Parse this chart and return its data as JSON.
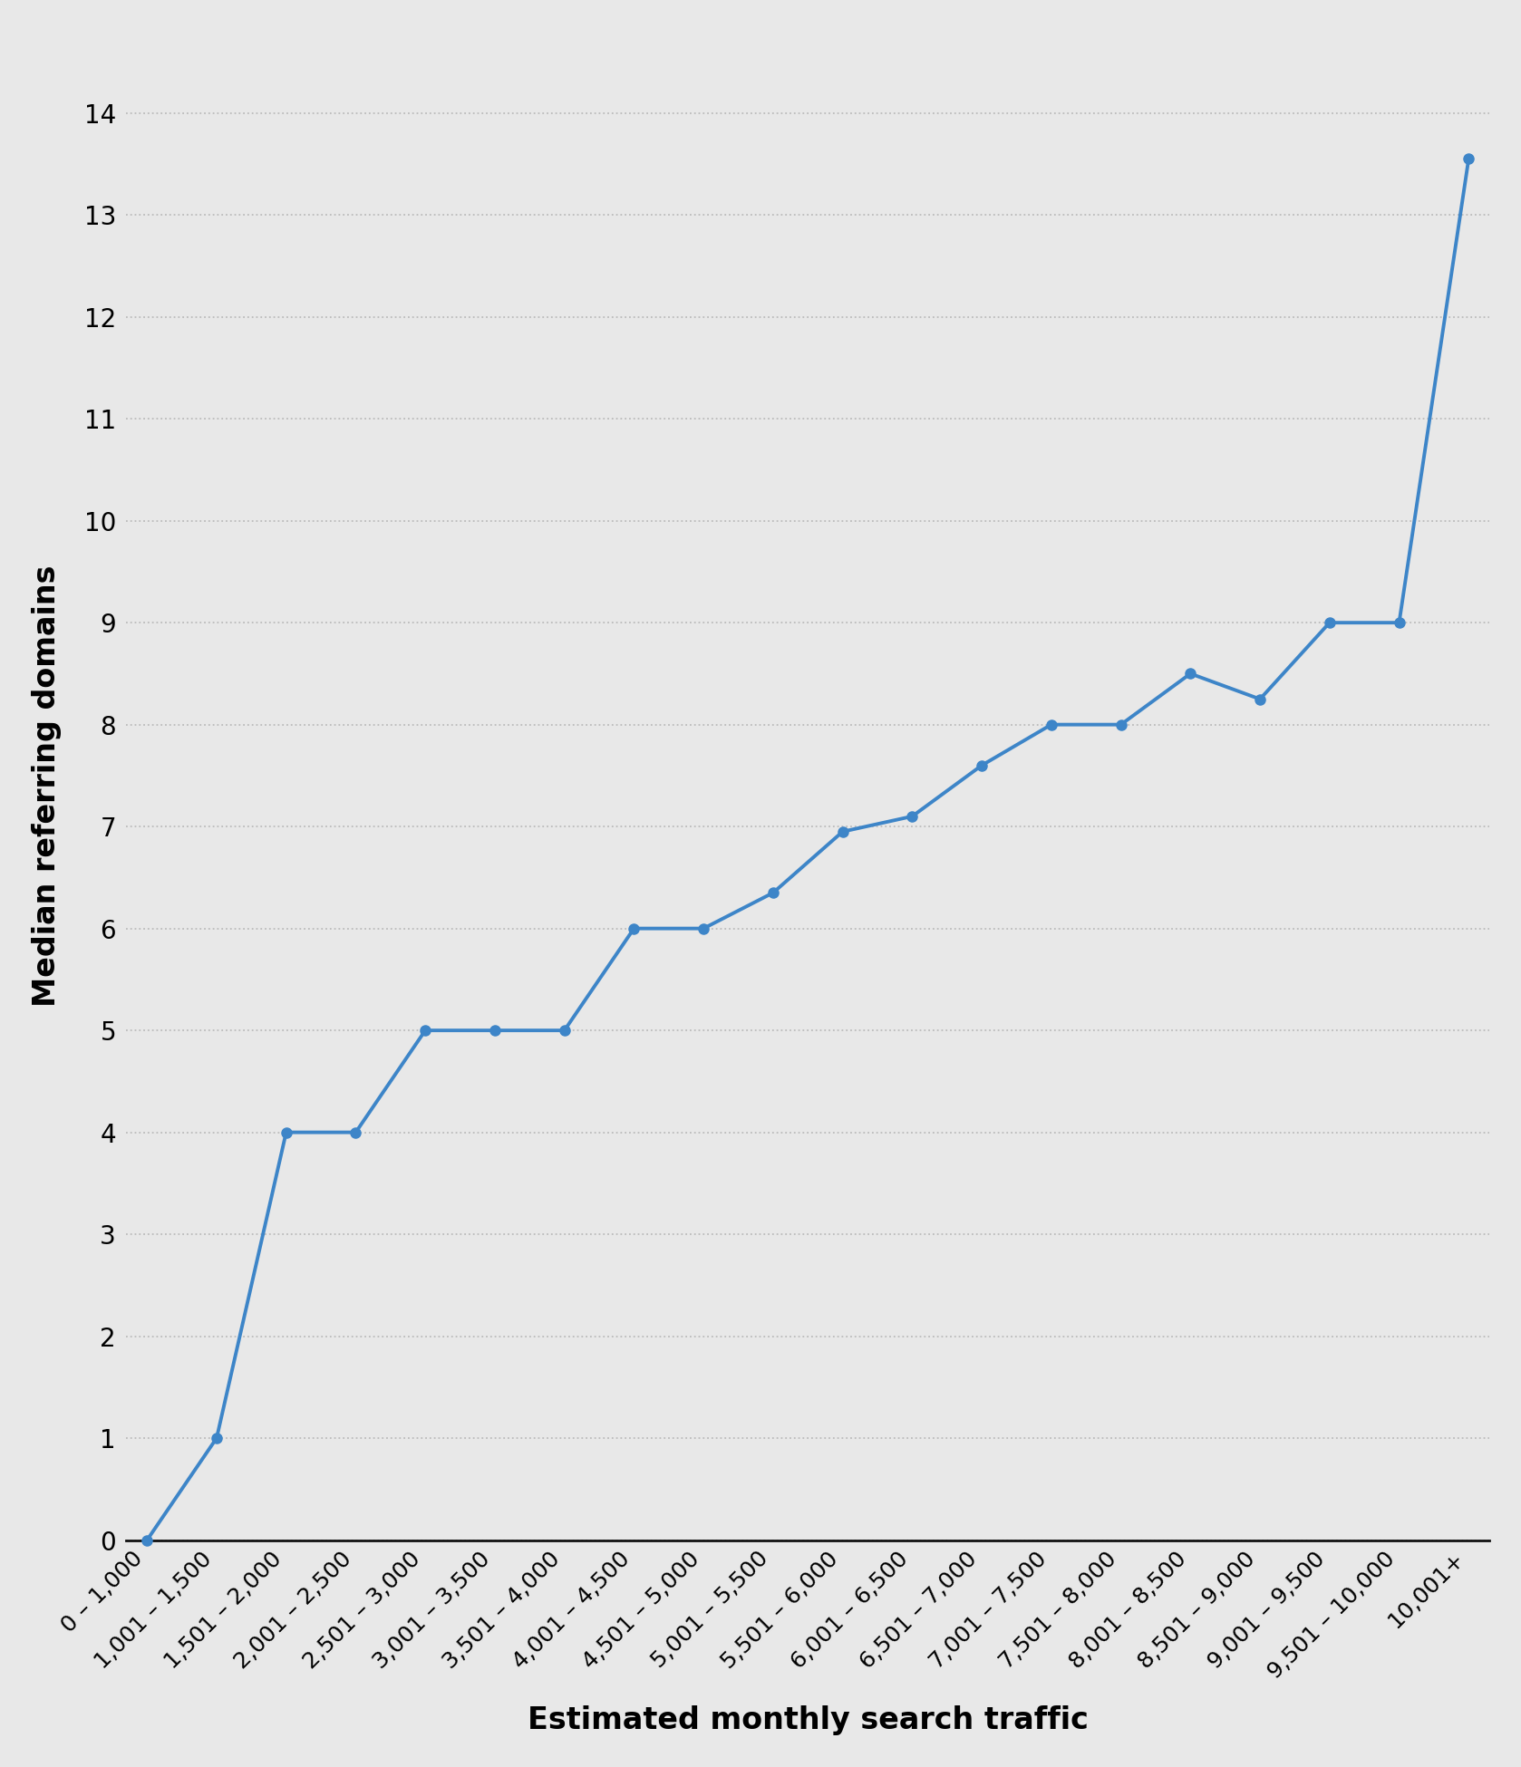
{
  "x_labels": [
    "0 – 1,000",
    "1,001 – 1,500",
    "1,501 – 2,000",
    "2,001 – 2,500",
    "2,501 – 3,000",
    "3,001 – 3,500",
    "3,501 – 4,000",
    "4,001 – 4,500",
    "4,501 – 5,000",
    "5,001 – 5,500",
    "5,501 – 6,000",
    "6,001 – 6,500",
    "6,501 – 7,000",
    "7,001 – 7,500",
    "7,501 – 8,000",
    "8,001 – 8,500",
    "8,501 – 9,000",
    "9,001 – 9,500",
    "9,501 – 10,000",
    "10,001+"
  ],
  "y_values": [
    0.0,
    1.0,
    4.0,
    4.0,
    5.0,
    5.0,
    5.0,
    6.0,
    6.0,
    6.35,
    6.95,
    7.1,
    7.6,
    8.0,
    8.0,
    8.5,
    8.25,
    9.0,
    9.0,
    13.55
  ],
  "line_color": "#3d85c8",
  "marker_color": "#3d85c8",
  "background_color": "#e8e8e8",
  "plot_bg_color": "#e8e8e8",
  "xlabel": "Estimated monthly search traffic",
  "ylabel": "Median referring domains",
  "ylim": [
    0,
    14.8
  ],
  "yticks": [
    0,
    1,
    2,
    3,
    4,
    5,
    6,
    7,
    8,
    9,
    10,
    11,
    12,
    13,
    14
  ],
  "axis_label_fontsize": 24,
  "tick_fontsize": 20,
  "grid_color": "#bbbbbb",
  "line_width": 2.8,
  "marker_size": 8,
  "bottom_spine_color": "#111111"
}
